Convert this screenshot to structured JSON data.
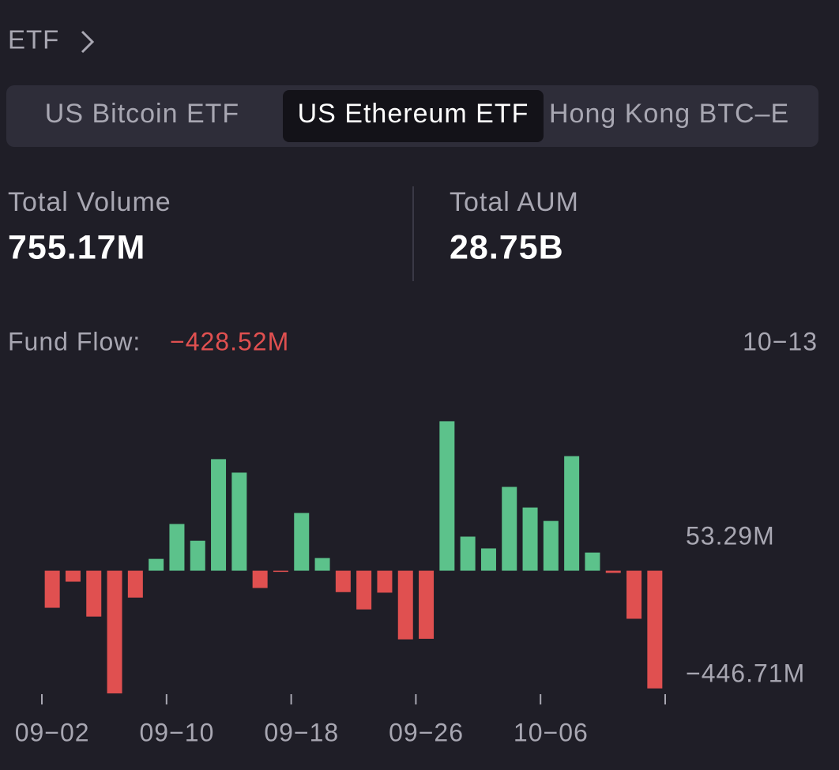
{
  "header": {
    "title": "ETF"
  },
  "tabs": [
    "US Bitcoin ETF",
    "US Ethereum ETF",
    "Hong Kong BTC–E"
  ],
  "stats": [
    {
      "label": "Total Volume",
      "value": "755.17M"
    },
    {
      "label": "Total AUM",
      "value": "28.75B"
    }
  ],
  "chart_data": {
    "type": "bar",
    "title": "Fund Flow:",
    "total": "−428.52M",
    "date": "10−13",
    "categories": [
      "09−02",
      null,
      null,
      null,
      null,
      null,
      "09−10",
      null,
      null,
      null,
      null,
      null,
      "09−18",
      null,
      null,
      null,
      null,
      null,
      "09−26",
      null,
      null,
      null,
      null,
      null,
      "10−06",
      null,
      null,
      null,
      null,
      null
    ],
    "values": [
      -135,
      -40,
      -167,
      -446.71,
      -98,
      43,
      170,
      109,
      406,
      357,
      -63,
      -2,
      210,
      46,
      -78,
      -141,
      -80,
      -250,
      -248,
      544,
      124,
      81,
      305,
      230,
      181,
      417,
      66,
      -8,
      -175,
      -428.52
    ],
    "positive_color": "#5cc28b",
    "negative_color": "#e05050",
    "ylim": [
      -446.71,
      640
    ],
    "yticks": [
      {
        "value": 53.29,
        "label": "53.29M"
      },
      {
        "value": -446.71,
        "label": "−446.71M"
      }
    ],
    "grid": false
  }
}
